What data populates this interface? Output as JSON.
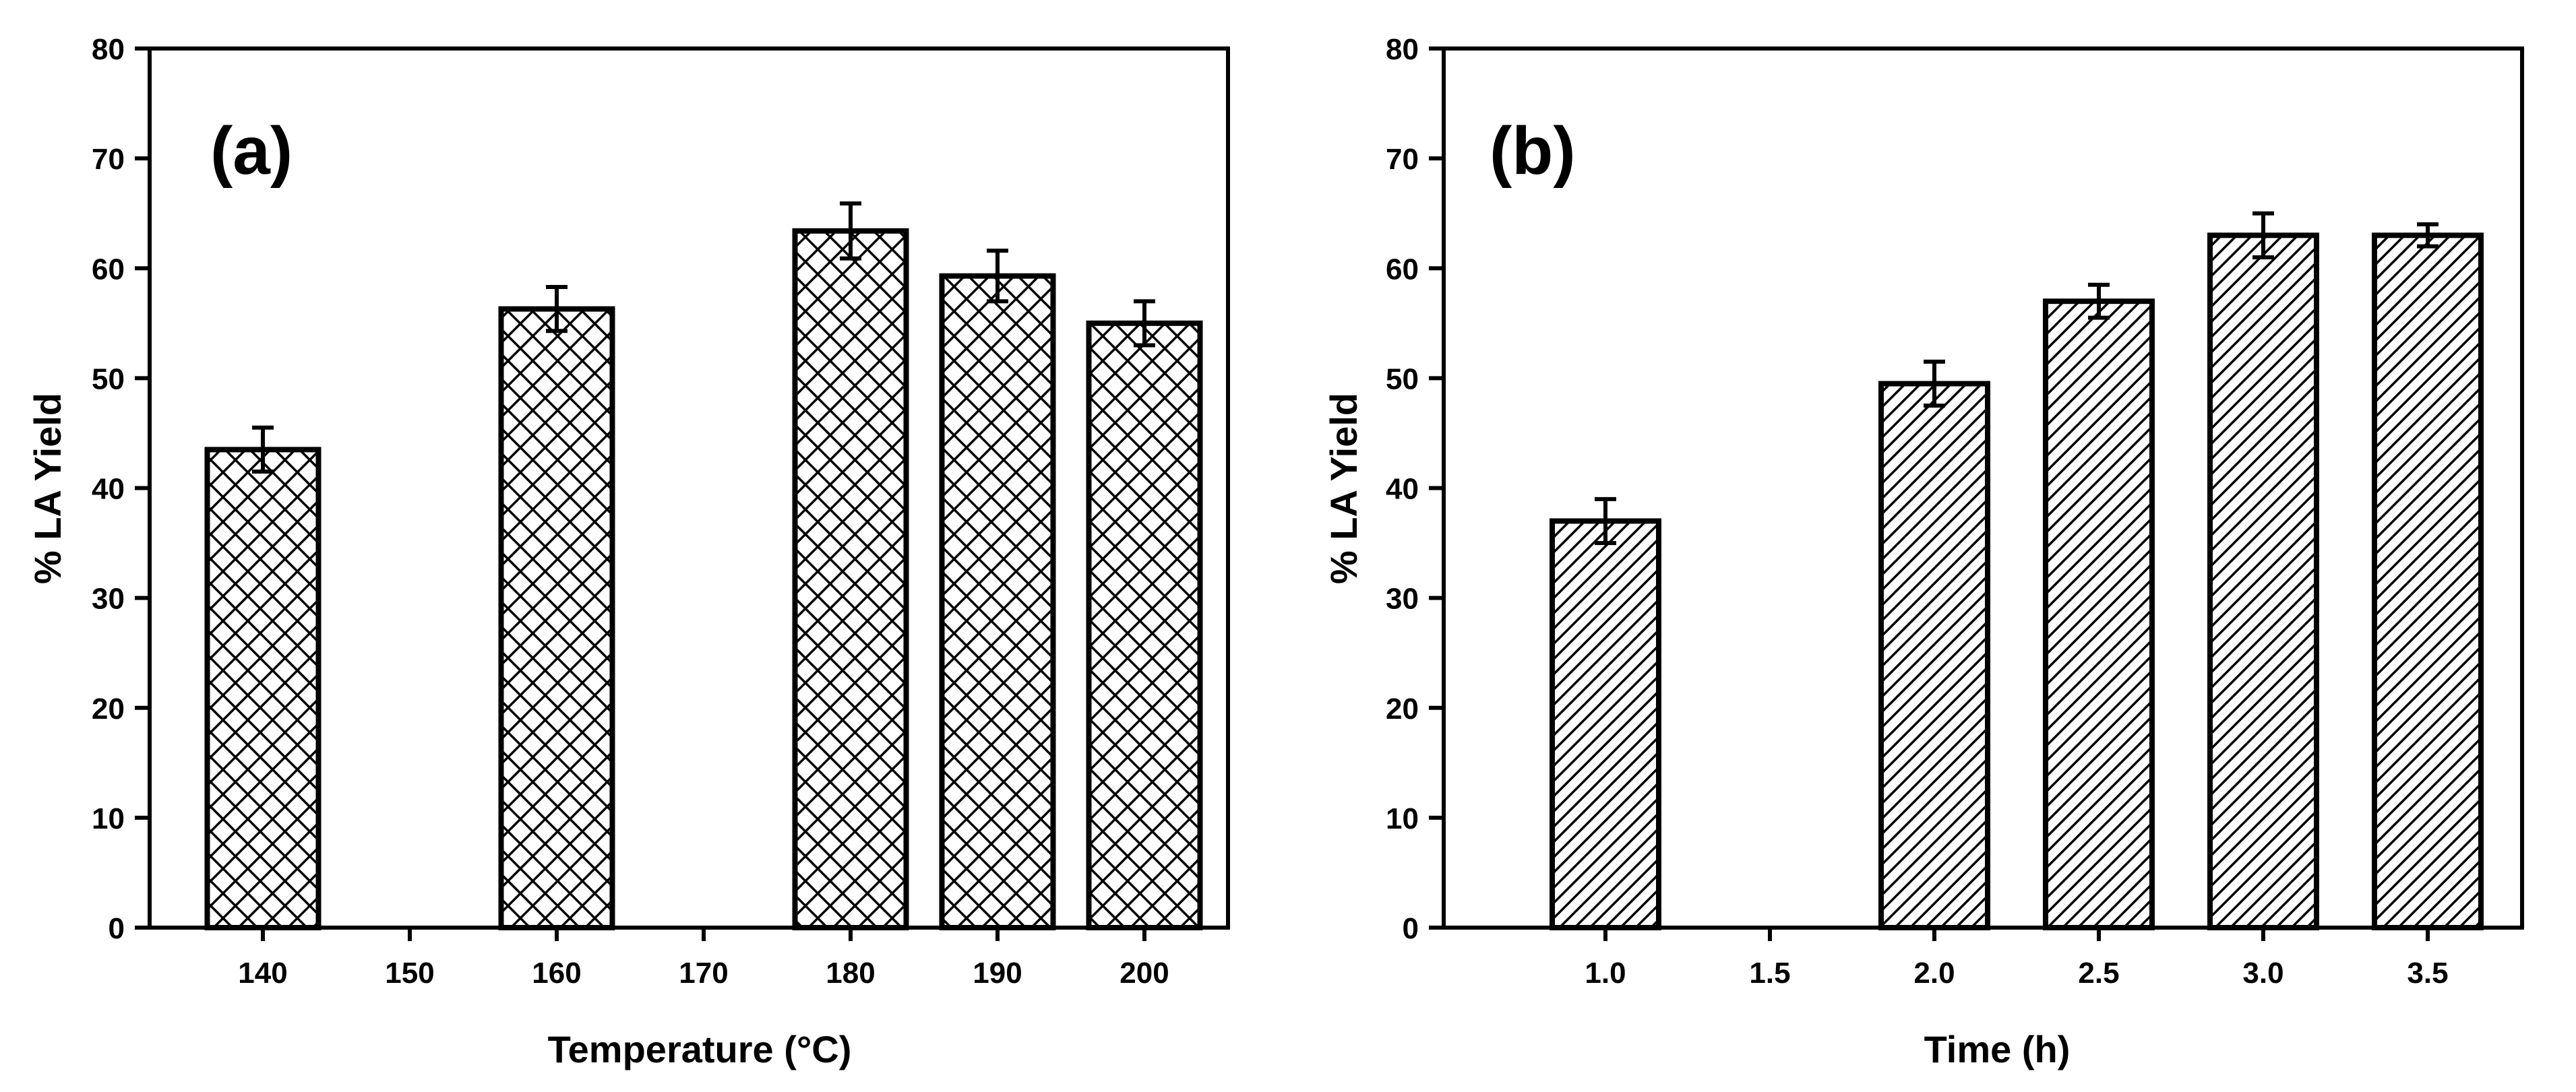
{
  "chart_data": [
    {
      "type": "bar",
      "panel_label": "(a)",
      "title": "",
      "xlabel": "Temperature (°C)",
      "ylabel": "% LA Yield",
      "ylim": [
        0,
        80
      ],
      "yticks": [
        0,
        10,
        20,
        30,
        40,
        50,
        60,
        70,
        80
      ],
      "categories": [
        "140",
        "150",
        "160",
        "170",
        "180",
        "190",
        "200"
      ],
      "values": [
        43.5,
        0,
        56.3,
        0,
        63.4,
        59.3,
        55.0
      ],
      "errors": [
        2.0,
        0,
        2.0,
        0,
        2.5,
        2.3,
        2.0
      ],
      "pattern": "crosshatch",
      "grid": false
    },
    {
      "type": "bar",
      "panel_label": "(b)",
      "title": "",
      "xlabel": "Time (h)",
      "ylabel": "% LA Yield",
      "ylim": [
        0,
        80
      ],
      "yticks": [
        0,
        10,
        20,
        30,
        40,
        50,
        60,
        70,
        80
      ],
      "categories": [
        "1.0",
        "1.5",
        "2.0",
        "2.5",
        "3.0",
        "3.5"
      ],
      "values": [
        37.0,
        0,
        49.5,
        57.0,
        63.0,
        63.0
      ],
      "errors": [
        2.0,
        0,
        2.0,
        1.5,
        2.0,
        1.0
      ],
      "pattern": "diagonal",
      "grid": false
    }
  ]
}
